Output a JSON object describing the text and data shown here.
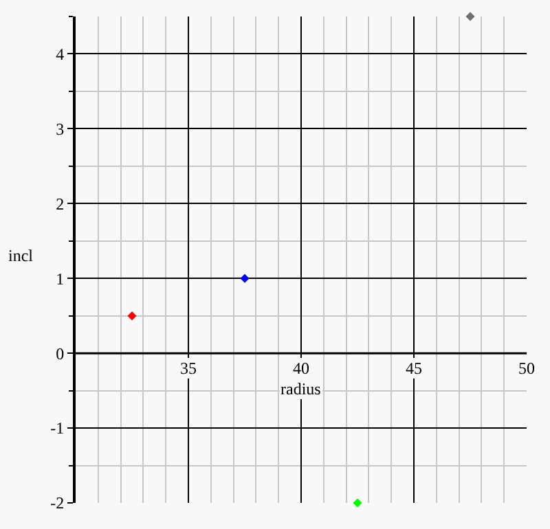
{
  "chart_data": {
    "type": "scatter",
    "xlabel": "radius",
    "ylabel": "incl",
    "x": [
      32.5,
      37.5,
      42.5,
      47.5
    ],
    "values": [
      0.5,
      1,
      -2,
      4.5
    ],
    "colors": [
      "#ff0000",
      "#0000ff",
      "#00ff00",
      "#6e6e6e"
    ],
    "xlim": [
      30,
      50
    ],
    "ylim": [
      -2,
      4.5
    ],
    "xticks": [
      35,
      40,
      45,
      50
    ],
    "yticks": [
      -2,
      -1,
      0,
      1,
      2,
      3,
      4
    ],
    "grid": true,
    "marker": "diamond"
  }
}
